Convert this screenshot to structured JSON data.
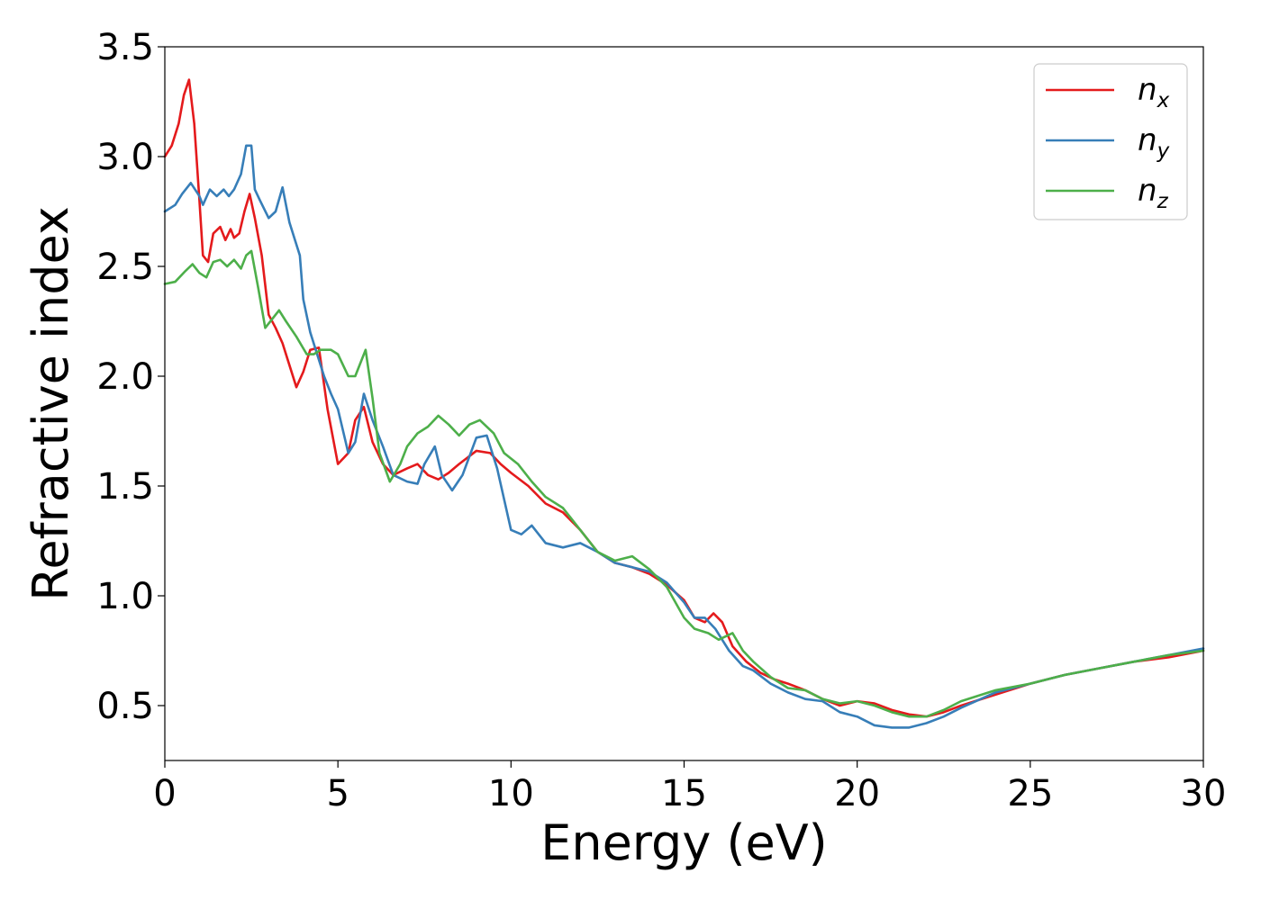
{
  "chart_data": {
    "type": "line",
    "title": "",
    "xlabel": "Energy (eV)",
    "ylabel": "Refractive index",
    "xlim": [
      0,
      30
    ],
    "ylim": [
      0.25,
      3.5
    ],
    "xticks": [
      0,
      5,
      10,
      15,
      20,
      25,
      30
    ],
    "xtick_labels": [
      "0",
      "5",
      "10",
      "15",
      "20",
      "25",
      "30"
    ],
    "yticks": [
      0.5,
      1.0,
      1.5,
      2.0,
      2.5,
      3.0,
      3.5
    ],
    "ytick_labels": [
      "0.5",
      "1.0",
      "1.5",
      "2.0",
      "2.5",
      "3.0",
      "3.5"
    ],
    "grid": false,
    "legend_position": "top-right",
    "series": [
      {
        "name": "n_x",
        "legend_base": "n",
        "legend_sub": "x",
        "color": "#e41a1c",
        "x": [
          0,
          0.2,
          0.4,
          0.55,
          0.7,
          0.85,
          1.0,
          1.1,
          1.25,
          1.4,
          1.6,
          1.75,
          1.9,
          2.0,
          2.15,
          2.3,
          2.45,
          2.6,
          2.8,
          3.0,
          3.2,
          3.4,
          3.6,
          3.8,
          4.0,
          4.2,
          4.45,
          4.7,
          5.0,
          5.3,
          5.5,
          5.75,
          6.0,
          6.3,
          6.6,
          7.0,
          7.3,
          7.6,
          7.9,
          8.2,
          8.5,
          9.0,
          9.4,
          9.7,
          10.0,
          10.5,
          11.0,
          11.5,
          12.0,
          12.5,
          13.0,
          13.5,
          14.0,
          14.5,
          15.0,
          15.3,
          15.6,
          15.85,
          16.1,
          16.4,
          16.8,
          17.2,
          17.6,
          18.0,
          18.5,
          19.0,
          19.5,
          20.0,
          20.5,
          21.0,
          21.5,
          22.0,
          22.5,
          23.0,
          24.0,
          25.0,
          26.0,
          27.0,
          28.0,
          29.0,
          30.0
        ],
        "y": [
          3.0,
          3.05,
          3.15,
          3.28,
          3.35,
          3.15,
          2.8,
          2.55,
          2.52,
          2.65,
          2.68,
          2.62,
          2.67,
          2.63,
          2.65,
          2.75,
          2.83,
          2.72,
          2.55,
          2.28,
          2.22,
          2.15,
          2.05,
          1.95,
          2.02,
          2.12,
          2.13,
          1.85,
          1.6,
          1.65,
          1.8,
          1.86,
          1.7,
          1.6,
          1.55,
          1.58,
          1.6,
          1.55,
          1.53,
          1.56,
          1.6,
          1.66,
          1.65,
          1.6,
          1.56,
          1.5,
          1.42,
          1.38,
          1.3,
          1.2,
          1.15,
          1.13,
          1.1,
          1.05,
          0.98,
          0.9,
          0.88,
          0.92,
          0.88,
          0.77,
          0.7,
          0.65,
          0.62,
          0.6,
          0.57,
          0.53,
          0.5,
          0.52,
          0.51,
          0.48,
          0.46,
          0.45,
          0.47,
          0.5,
          0.55,
          0.6,
          0.64,
          0.67,
          0.7,
          0.72,
          0.75
        ]
      },
      {
        "name": "n_y",
        "legend_base": "n",
        "legend_sub": "y",
        "color": "#377eb8",
        "x": [
          0,
          0.3,
          0.5,
          0.75,
          1.0,
          1.1,
          1.3,
          1.5,
          1.7,
          1.85,
          2.0,
          2.2,
          2.35,
          2.5,
          2.6,
          2.75,
          3.0,
          3.2,
          3.4,
          3.6,
          3.8,
          3.9,
          4.0,
          4.2,
          4.4,
          4.6,
          4.8,
          5.0,
          5.3,
          5.5,
          5.75,
          6.0,
          6.3,
          6.6,
          7.0,
          7.3,
          7.5,
          7.8,
          8.0,
          8.3,
          8.6,
          9.0,
          9.3,
          9.6,
          10.0,
          10.3,
          10.6,
          11.0,
          11.5,
          12.0,
          12.5,
          13.0,
          13.5,
          14.0,
          14.5,
          15.0,
          15.3,
          15.6,
          15.9,
          16.3,
          16.7,
          17.0,
          17.5,
          18.0,
          18.5,
          19.0,
          19.5,
          20.0,
          20.5,
          21.0,
          21.5,
          22.0,
          22.5,
          23.0,
          24.0,
          25.0,
          26.0,
          27.0,
          28.0,
          29.0,
          30.0
        ],
        "y": [
          2.75,
          2.78,
          2.83,
          2.88,
          2.82,
          2.78,
          2.85,
          2.82,
          2.85,
          2.82,
          2.85,
          2.92,
          3.05,
          3.05,
          2.85,
          2.8,
          2.72,
          2.75,
          2.86,
          2.7,
          2.6,
          2.55,
          2.35,
          2.2,
          2.1,
          2.0,
          1.92,
          1.85,
          1.65,
          1.7,
          1.92,
          1.8,
          1.68,
          1.55,
          1.52,
          1.51,
          1.6,
          1.68,
          1.55,
          1.48,
          1.55,
          1.72,
          1.73,
          1.58,
          1.3,
          1.28,
          1.32,
          1.24,
          1.22,
          1.24,
          1.2,
          1.15,
          1.13,
          1.11,
          1.06,
          0.97,
          0.9,
          0.9,
          0.85,
          0.75,
          0.68,
          0.66,
          0.6,
          0.56,
          0.53,
          0.52,
          0.47,
          0.45,
          0.41,
          0.4,
          0.4,
          0.42,
          0.45,
          0.49,
          0.56,
          0.6,
          0.64,
          0.67,
          0.7,
          0.73,
          0.76
        ]
      },
      {
        "name": "n_z",
        "legend_base": "n",
        "legend_sub": "z",
        "color": "#4daf4a",
        "x": [
          0,
          0.3,
          0.6,
          0.8,
          1.0,
          1.2,
          1.4,
          1.6,
          1.8,
          2.0,
          2.2,
          2.35,
          2.5,
          2.7,
          2.9,
          3.1,
          3.3,
          3.5,
          3.8,
          4.1,
          4.3,
          4.5,
          4.8,
          5.0,
          5.3,
          5.5,
          5.8,
          6.0,
          6.2,
          6.5,
          6.8,
          7.0,
          7.3,
          7.6,
          7.9,
          8.2,
          8.5,
          8.8,
          9.1,
          9.5,
          9.8,
          10.2,
          10.6,
          11.0,
          11.5,
          12.0,
          12.5,
          13.0,
          13.5,
          14.0,
          14.5,
          15.0,
          15.3,
          15.7,
          16.0,
          16.4,
          16.7,
          17.0,
          17.5,
          18.0,
          18.5,
          19.0,
          19.5,
          20.0,
          20.5,
          21.0,
          21.5,
          22.0,
          22.5,
          23.0,
          24.0,
          25.0,
          26.0,
          27.0,
          28.0,
          29.0,
          30.0
        ],
        "y": [
          2.42,
          2.43,
          2.48,
          2.51,
          2.47,
          2.45,
          2.52,
          2.53,
          2.5,
          2.53,
          2.49,
          2.55,
          2.57,
          2.4,
          2.22,
          2.26,
          2.3,
          2.25,
          2.18,
          2.1,
          2.1,
          2.12,
          2.12,
          2.1,
          2.0,
          2.0,
          2.12,
          1.9,
          1.65,
          1.52,
          1.6,
          1.68,
          1.74,
          1.77,
          1.82,
          1.78,
          1.73,
          1.78,
          1.8,
          1.74,
          1.65,
          1.6,
          1.52,
          1.45,
          1.4,
          1.3,
          1.2,
          1.16,
          1.18,
          1.12,
          1.04,
          0.9,
          0.85,
          0.83,
          0.8,
          0.83,
          0.75,
          0.7,
          0.63,
          0.58,
          0.57,
          0.53,
          0.51,
          0.52,
          0.5,
          0.47,
          0.45,
          0.45,
          0.48,
          0.52,
          0.57,
          0.6,
          0.64,
          0.67,
          0.7,
          0.73,
          0.75
        ]
      }
    ]
  }
}
